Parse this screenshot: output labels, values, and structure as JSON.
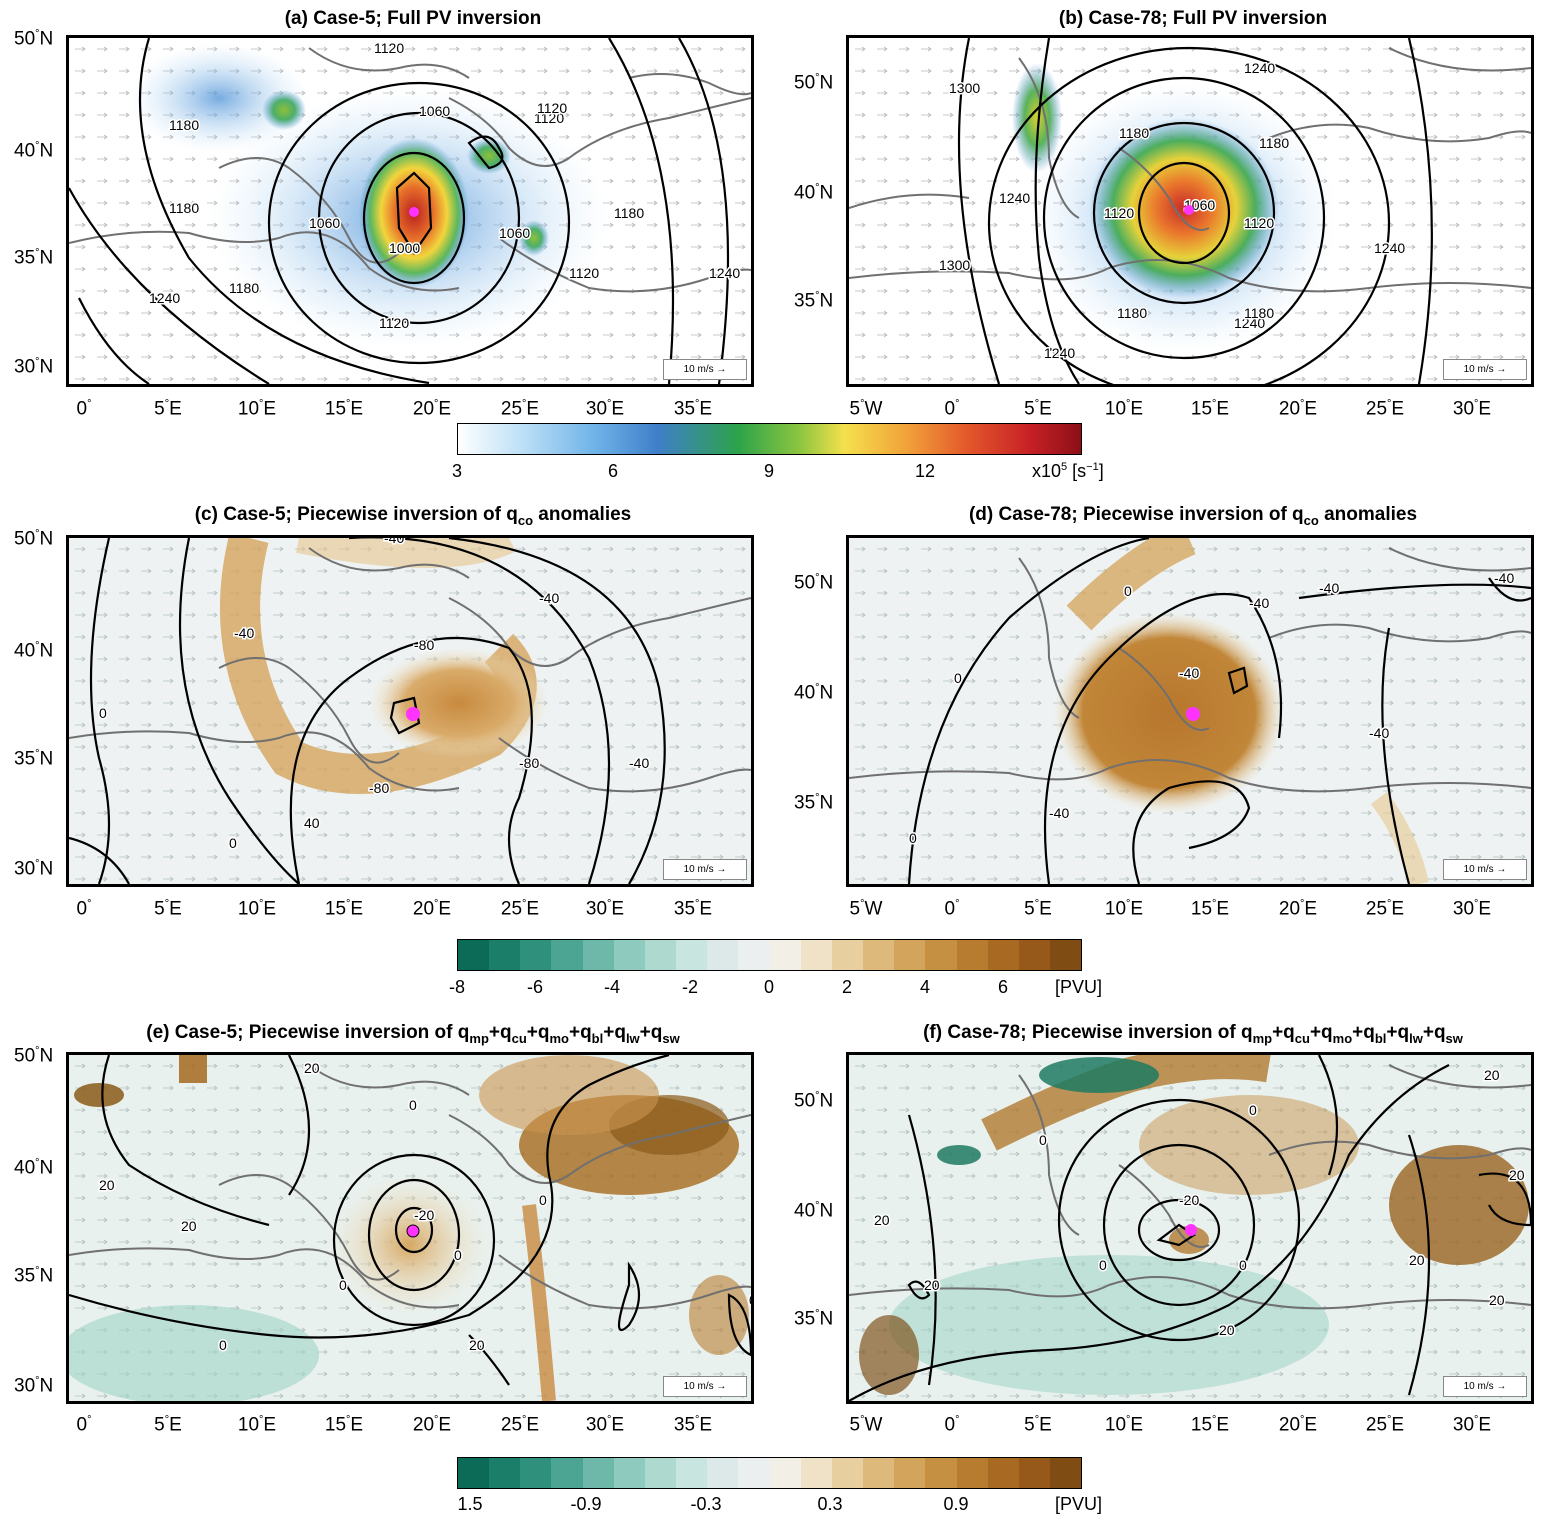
{
  "panels": {
    "a": {
      "title_prefix": "(a) Case-5; Full PV inversion",
      "contour_labels": [
        "1120",
        "1180",
        "1060",
        "1180",
        "1120",
        "1120",
        "1060",
        "1000",
        "1060",
        "1180",
        "1240",
        "1180",
        "1120",
        "1240",
        "1120"
      ]
    },
    "b": {
      "title_prefix": "(b) Case-78; Full PV inversion",
      "contour_labels": [
        "1240",
        "1300",
        "1240",
        "1180",
        "1180",
        "1120",
        "1060",
        "1240",
        "1120",
        "1300",
        "1240",
        "1180",
        "1180",
        "1240"
      ]
    },
    "c": {
      "title_prefix": "(c) Case-5; Piecewise inversion of q",
      "title_sub": "co",
      "title_suffix": " anomalies",
      "contour_labels": [
        "-40",
        "-40",
        "-80",
        "-40",
        "0",
        "-80",
        "-80",
        "40",
        "-40",
        "0"
      ]
    },
    "d": {
      "title_prefix": "(d) Case-78; Piecewise inversion of q",
      "title_sub": "co",
      "title_suffix": " anomalies",
      "contour_labels": [
        "0",
        "-40",
        "-40",
        "0",
        "-40",
        "-40",
        "-40",
        "0",
        "-40"
      ]
    },
    "e": {
      "title_prefix": "(e) Case-5; Piecewise inversion of q",
      "title_subs": [
        "mp",
        "cu",
        "mo",
        "bl",
        "lw",
        "sw"
      ],
      "contour_labels": [
        "20",
        "0",
        "20",
        "-20",
        "20",
        "0",
        "0",
        "0",
        "0",
        "20",
        "0"
      ]
    },
    "f": {
      "title_prefix": "(f) Case-78; Piecewise inversion of q",
      "title_subs": [
        "mp",
        "cu",
        "mo",
        "bl",
        "lw",
        "sw"
      ],
      "contour_labels": [
        "0",
        "0",
        "20",
        "-20",
        "0",
        "0",
        "20",
        "20",
        "20",
        "20",
        "20",
        "20"
      ]
    }
  },
  "left_lat_labels": [
    "50",
    "40",
    "35",
    "30"
  ],
  "right_lat_labels": [
    "50",
    "40",
    "35"
  ],
  "lat_suffix": "N",
  "left_lon_labels": [
    "0",
    "5 E",
    "10 E",
    "15 E",
    "20 E",
    "25 E",
    "30 E",
    "35 E"
  ],
  "right_lon_labels": [
    "5 W",
    "0",
    "5 E",
    "10 E",
    "15 E",
    "20 E",
    "25 E",
    "30 E"
  ],
  "deg_symbol": "°",
  "vector_scale_label": "10 m/s",
  "colorbar1": {
    "ticks": [
      "3",
      "6",
      "9",
      "12"
    ],
    "unit_prefix": "x10",
    "unit_exp": "5",
    "unit_suffix": " [s",
    "unit_exp2": "−1",
    "unit_end": "]"
  },
  "colorbar2": {
    "ticks": [
      "-8",
      "-6",
      "-4",
      "-2",
      "0",
      "2",
      "4",
      "6"
    ],
    "unit": "[PVU]"
  },
  "colorbar3": {
    "ticks": [
      "1.5",
      "-0.9",
      "-0.3",
      "0.3",
      "0.9"
    ],
    "unit": "[PVU]"
  },
  "colors": {
    "center_marker": "#ff33ff",
    "coast": "#707070",
    "contour": "#000000"
  }
}
